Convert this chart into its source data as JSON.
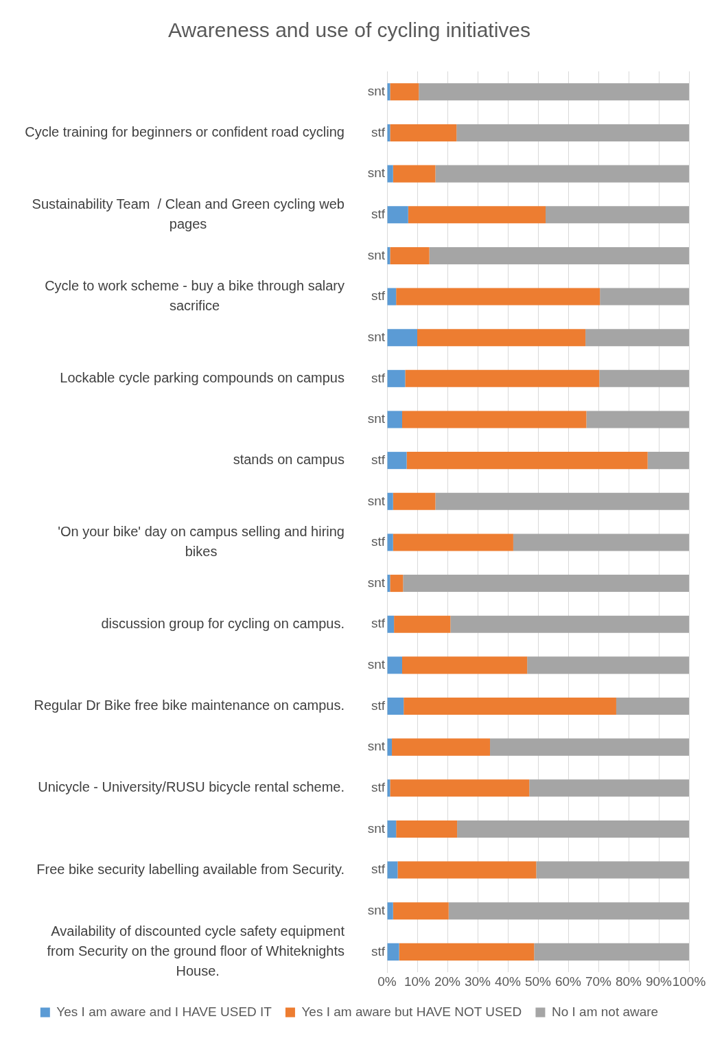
{
  "chart_data": {
    "type": "bar",
    "title": "Awareness and use of cycling initiatives",
    "orientation": "horizontal",
    "stacked": true,
    "categories": [
      "snt",
      "stf",
      "snt",
      "stf",
      "snt",
      "stf",
      "snt",
      "stf",
      "snt",
      "stf",
      "snt",
      "stf",
      "snt",
      "stf",
      "snt",
      "stf",
      "snt",
      "stf",
      "snt",
      "stf",
      "snt",
      "stf"
    ],
    "annotations": [
      "Cycle training for beginners or confident road cycling",
      "Sustainability Team  / Clean and Green cycling web pages",
      "Cycle to work scheme - buy a bike through salary sacrifice",
      "Lockable cycle parking compounds on campus",
      "stands on campus",
      "'On your bike' day on campus selling and hiring bikes",
      "discussion group for cycling on campus.",
      "Regular Dr Bike free bike maintenance on campus.",
      "Unicycle - University/RUSU bicycle rental scheme.",
      "Free bike security labelling available from Security.",
      "Availability of discounted cycle safety equipment from Security on the ground floor of Whiteknights House."
    ],
    "series": [
      {
        "name": "Yes I am aware and I HAVE USED IT",
        "color": "#5b9bd5",
        "values": [
          1,
          1,
          2,
          7,
          1,
          3,
          10,
          6,
          5,
          6.5,
          2,
          2,
          1,
          2.3,
          5,
          5.5,
          1.6,
          1,
          3,
          3.5,
          2,
          4
        ]
      },
      {
        "name": "Yes I am aware but HAVE NOT USED",
        "color": "#ed7d31",
        "values": [
          9.5,
          22,
          14,
          45.5,
          13,
          67.5,
          55.7,
          64.3,
          61,
          79.8,
          14,
          39.8,
          4.3,
          18.7,
          41.4,
          70.4,
          32.5,
          46.1,
          20.2,
          45.9,
          18.4,
          44.7
        ]
      },
      {
        "name": "No I am not aware",
        "color": "#a5a5a5",
        "values": [
          89.5,
          77,
          84,
          47.5,
          86,
          29.5,
          34.3,
          29.7,
          34,
          13.7,
          84,
          58.2,
          94.7,
          79,
          53.6,
          24.1,
          65.9,
          52.9,
          76.8,
          50.6,
          79.6,
          51.3
        ]
      }
    ],
    "xlim": [
      0,
      100
    ],
    "xticks": [
      {
        "value": 0,
        "label": "0%"
      },
      {
        "value": 10,
        "label": "10%"
      },
      {
        "value": 20,
        "label": "20%"
      },
      {
        "value": 30,
        "label": "30%"
      },
      {
        "value": 40,
        "label": "40%"
      },
      {
        "value": 50,
        "label": "50%"
      },
      {
        "value": 60,
        "label": "60%"
      },
      {
        "value": 70,
        "label": "70%"
      },
      {
        "value": 80,
        "label": "80%"
      },
      {
        "value": 90,
        "label": "90%"
      },
      {
        "value": 100,
        "label": "100%"
      }
    ],
    "grid": "x",
    "legend": "bottom"
  }
}
